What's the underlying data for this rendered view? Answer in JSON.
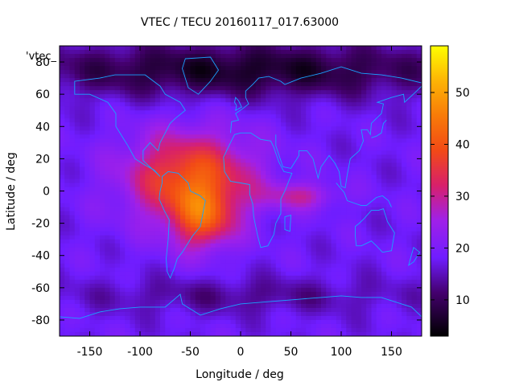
{
  "chart_data": {
    "type": "heatmap",
    "title": "VTEC / TECU 20160117_017.63000",
    "xlabel": "Longitude / deg",
    "ylabel": "Latitude / deg",
    "key_label": "'vtec_",
    "xlim": [
      -180,
      180
    ],
    "ylim": [
      -90,
      90
    ],
    "xticks": [
      -150,
      -100,
      -50,
      0,
      50,
      100,
      150
    ],
    "yticks": [
      -80,
      -60,
      -40,
      -20,
      0,
      20,
      40,
      60,
      80
    ],
    "colorbar": {
      "min": 3,
      "max": 59,
      "ticks": [
        10,
        20,
        30,
        40,
        50
      ],
      "colormap": "black-purple-blue-magenta-red-orange-yellow"
    },
    "grid": {
      "lon_start": -180,
      "lon_step": 5,
      "lat_start": 87.5,
      "lat_step": -2.5,
      "values_note": "estimated from colors; rows north to south"
    },
    "features": [
      {
        "name": "background",
        "value": 18
      },
      {
        "name": "main-crest-south-america",
        "lon": -38,
        "lat": -18,
        "value": 56
      },
      {
        "name": "equatorial-band",
        "lon": -50,
        "lat": 8,
        "value": 40
      },
      {
        "name": "atlantic-africa-extension",
        "lon": 60,
        "lat": -3,
        "value": 31
      },
      {
        "name": "southern-trough",
        "lon": 0,
        "lat": -65,
        "value": 13
      },
      {
        "name": "polar-minimum",
        "lon": 0,
        "lat": 75,
        "value": 6
      }
    ]
  }
}
